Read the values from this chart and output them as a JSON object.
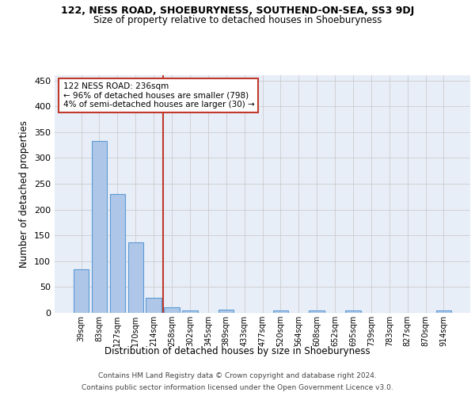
{
  "title": "122, NESS ROAD, SHOEBURYNESS, SOUTHEND-ON-SEA, SS3 9DJ",
  "subtitle": "Size of property relative to detached houses in Shoeburyness",
  "xlabel": "Distribution of detached houses by size in Shoeburyness",
  "ylabel": "Number of detached properties",
  "categories": [
    "39sqm",
    "83sqm",
    "127sqm",
    "170sqm",
    "214sqm",
    "258sqm",
    "302sqm",
    "345sqm",
    "389sqm",
    "433sqm",
    "477sqm",
    "520sqm",
    "564sqm",
    "608sqm",
    "652sqm",
    "695sqm",
    "739sqm",
    "783sqm",
    "827sqm",
    "870sqm",
    "914sqm"
  ],
  "values": [
    85,
    333,
    230,
    137,
    29,
    11,
    5,
    0,
    6,
    0,
    0,
    5,
    0,
    5,
    0,
    5,
    0,
    0,
    0,
    0,
    5
  ],
  "bar_color": "#aec6e8",
  "bar_edge_color": "#5b9bd5",
  "grid_color": "#cccccc",
  "background_color": "#e8eef8",
  "annotation_line_color": "#c0392b",
  "annotation_box_color": "#c0392b",
  "property_label": "122 NESS ROAD: 236sqm",
  "pct_smaller": "96% of detached houses are smaller (798)",
  "pct_larger": "4% of semi-detached houses are larger (30)",
  "ylim": [
    0,
    460
  ],
  "yticks": [
    0,
    50,
    100,
    150,
    200,
    250,
    300,
    350,
    400,
    450
  ],
  "footer1": "Contains HM Land Registry data © Crown copyright and database right 2024.",
  "footer2": "Contains public sector information licensed under the Open Government Licence v3.0."
}
